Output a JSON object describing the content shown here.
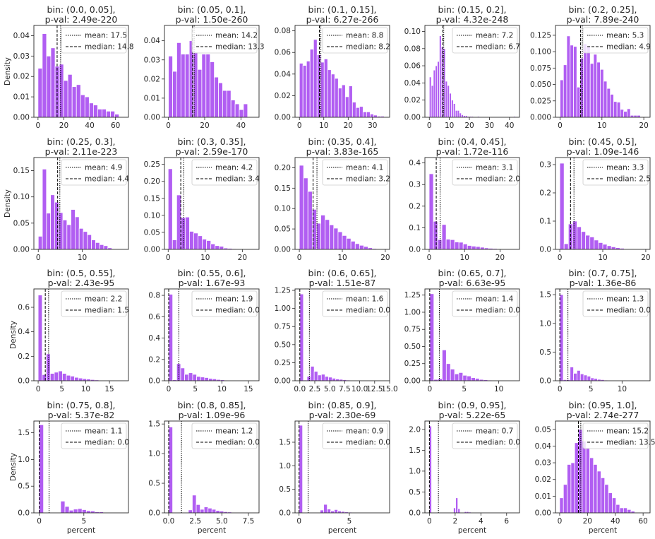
{
  "chart_data": {
    "type": "histogram_grid",
    "shared_ylabel": "Density",
    "shared_xlabel": "percent",
    "legend": {
      "mean_label": "mean",
      "median_label": "median",
      "placement": "upper-right"
    },
    "colors": {
      "bar": "#b15ef2",
      "bar_edge": "#ffffff",
      "mean_line": "#000000",
      "median_line": "#000000"
    },
    "panels": [
      {
        "title1": "bin:  (0.0, 0.05],",
        "title2": "p-val: 2.49e-220",
        "mean": 17.5,
        "median": 14.8,
        "xlim": [
          -3.2,
          70
        ],
        "ylim": [
          0,
          0.045
        ],
        "xticks": [
          0,
          20,
          40,
          60
        ],
        "yticks": [
          0.0,
          0.01,
          0.02,
          0.03,
          0.04
        ],
        "yfmt": 2,
        "values": [
          0.024,
          0.041,
          0.03,
          0.034,
          0.025,
          0.026,
          0.018,
          0.021,
          0.015,
          0.016,
          0.011,
          0.01,
          0.007,
          0.006,
          0.004,
          0.004,
          0.003,
          0.003,
          0.0015
        ],
        "bins": [
          0,
          3.3
        ]
      },
      {
        "title1": "bin:  (0.05, 0.1],",
        "title2": "p-val: 1.50e-260",
        "mean": 14.2,
        "median": 13.3,
        "xlim": [
          -2.2,
          50
        ],
        "ylim": [
          0,
          0.048
        ],
        "xticks": [
          0,
          20,
          40
        ],
        "yticks": [
          0.0,
          0.01,
          0.02,
          0.03,
          0.04
        ],
        "yfmt": 2,
        "values": [
          0.032,
          0.024,
          0.039,
          0.033,
          0.033,
          0.04,
          0.034,
          0.025,
          0.033,
          0.033,
          0.029,
          0.021,
          0.018,
          0.014,
          0.014,
          0.009,
          0.007,
          0.004,
          0.007
        ],
        "bins": [
          0,
          2.3
        ]
      },
      {
        "title1": "bin:  (0.1, 0.15],",
        "title2": "p-val: 6.27e-266",
        "mean": 8.8,
        "median": 8.2,
        "xlim": [
          -1.8,
          37
        ],
        "ylim": [
          0,
          0.085
        ],
        "xticks": [
          0,
          10,
          20,
          30
        ],
        "yticks": [
          0.0,
          0.02,
          0.04,
          0.06,
          0.08
        ],
        "yfmt": 2,
        "values": [
          0.05,
          0.048,
          0.052,
          0.063,
          0.072,
          0.058,
          0.051,
          0.054,
          0.044,
          0.04,
          0.036,
          0.027,
          0.03,
          0.019,
          0.029,
          0.014,
          0.009,
          0.01,
          0.005,
          0.005,
          0.003,
          0.002,
          0.001,
          0.001
        ],
        "bins": [
          0,
          1.45
        ]
      },
      {
        "title1": "bin:  (0.15, 0.2],",
        "title2": "p-val: 4.32e-248",
        "mean": 7.2,
        "median": 6.7,
        "xlim": [
          -2.2,
          45
        ],
        "ylim": [
          0,
          0.107
        ],
        "xticks": [
          0,
          10,
          20,
          30,
          40
        ],
        "yticks": [
          0.0,
          0.02,
          0.04,
          0.06,
          0.08,
          0.1
        ],
        "yfmt": 2,
        "values": [
          0.047,
          0.037,
          0.055,
          0.06,
          0.065,
          0.095,
          0.082,
          0.08,
          0.042,
          0.037,
          0.028,
          0.02,
          0.016,
          0.008,
          0.008,
          0.005,
          0.003,
          0.002,
          0.002,
          0.001,
          0.001,
          0.001,
          0.0,
          0.0,
          0.001,
          0.0,
          0.0,
          0.0,
          0.0,
          0.0,
          0.0,
          0.0,
          0.0,
          0.0,
          0.0,
          0.0,
          0.0,
          0.0,
          0.0,
          0.0,
          0.0,
          0.0,
          0.001
        ],
        "bins": [
          0,
          1.0
        ]
      },
      {
        "title1": "bin:  (0.2, 0.25],",
        "title2": "p-val: 7.89e-240",
        "mean": 5.3,
        "median": 4.9,
        "xlim": [
          -1.1,
          21.5
        ],
        "ylim": [
          0,
          0.14
        ],
        "xticks": [
          0,
          10,
          20
        ],
        "yticks": [
          0.0,
          0.025,
          0.05,
          0.075,
          0.1,
          0.125
        ],
        "yfmt": 3,
        "values": [
          0.057,
          0.08,
          0.124,
          0.11,
          0.108,
          0.046,
          0.09,
          0.112,
          0.108,
          0.082,
          0.096,
          0.084,
          0.073,
          0.055,
          0.044,
          0.035,
          0.024,
          0.023,
          0.012,
          0.009,
          0.013,
          0.003,
          0.003,
          0.003,
          0.001
        ],
        "bins": [
          0,
          0.8
        ]
      },
      {
        "title1": "bin:  (0.25, 0.3],",
        "title2": "p-val: 2.11e-223",
        "mean": 4.9,
        "median": 4.4,
        "xlim": [
          -1.0,
          20.5
        ],
        "ylim": [
          0,
          0.175
        ],
        "xticks": [
          0,
          10
        ],
        "yticks": [
          0.0,
          0.05,
          0.1,
          0.15
        ],
        "yfmt": 2,
        "values": [
          0.025,
          0.153,
          0.069,
          0.104,
          0.09,
          0.07,
          0.056,
          0.047,
          0.076,
          0.062,
          0.04,
          0.034,
          0.028,
          0.018,
          0.013,
          0.009,
          0.007,
          0.003,
          0.001
        ],
        "bins": [
          0,
          0.93
        ]
      },
      {
        "title1": "bin:  (0.3, 0.35],",
        "title2": "p-val: 2.59e-170",
        "mean": 4.2,
        "median": 3.4,
        "xlim": [
          -1.0,
          24.5
        ],
        "ylim": [
          0,
          0.27
        ],
        "xticks": [
          0,
          10,
          20
        ],
        "yticks": [
          0.0,
          0.05,
          0.1,
          0.15,
          0.2,
          0.25
        ],
        "yfmt": 2,
        "values": [
          0.237,
          0.028,
          0.16,
          0.093,
          0.095,
          0.053,
          0.048,
          0.04,
          0.03,
          0.026,
          0.016,
          0.011,
          0.009,
          0.004,
          0.003,
          0.002,
          0.001
        ],
        "bins": [
          0,
          1.15
        ]
      },
      {
        "title1": "bin:  (0.35, 0.4],",
        "title2": "p-val: 3.83e-165",
        "mean": 4.1,
        "median": 3.2,
        "xlim": [
          -1.0,
          21.0
        ],
        "ylim": [
          0,
          0.225
        ],
        "xticks": [
          0,
          10,
          20
        ],
        "yticks": [
          0.0,
          0.05,
          0.1,
          0.15,
          0.2
        ],
        "yfmt": 2,
        "values": [
          0.206,
          0.175,
          0.142,
          0.098,
          0.064,
          0.084,
          0.073,
          0.06,
          0.052,
          0.043,
          0.034,
          0.027,
          0.02,
          0.014,
          0.01,
          0.007,
          0.004,
          0.002,
          0.001
        ],
        "bins": [
          0,
          1.0
        ]
      },
      {
        "title1": "bin:  (0.4, 0.45],",
        "title2": "p-val: 1.72e-116",
        "mean": 3.1,
        "median": 2.0,
        "xlim": [
          -1.2,
          25.5
        ],
        "ylim": [
          0,
          0.425
        ],
        "xticks": [
          0,
          10,
          20
        ],
        "yticks": [
          0.0,
          0.1,
          0.2,
          0.3,
          0.4
        ],
        "yfmt": 1,
        "values": [
          0.35,
          0.13,
          0.045,
          0.115,
          0.047,
          0.045,
          0.034,
          0.033,
          0.025,
          0.018,
          0.015,
          0.013,
          0.01,
          0.007,
          0.005,
          0.004,
          0.002,
          0.001
        ],
        "bins": [
          0,
          1.2
        ]
      },
      {
        "title1": "bin:  (0.45, 0.5],",
        "title2": "p-val: 1.09e-146",
        "mean": 3.3,
        "median": 2.5,
        "xlim": [
          -1.0,
          21.0
        ],
        "ylim": [
          0,
          0.325
        ],
        "xticks": [
          0,
          10,
          20
        ],
        "yticks": [
          0.0,
          0.1,
          0.2,
          0.3
        ],
        "yfmt": 1,
        "values": [
          0.305,
          0.02,
          0.09,
          0.1,
          0.08,
          0.063,
          0.05,
          0.044,
          0.033,
          0.024,
          0.018,
          0.013,
          0.009,
          0.006,
          0.004,
          0.002,
          0.001
        ],
        "bins": [
          0,
          1.0
        ]
      },
      {
        "title1": "bin:  (0.5, 0.55],",
        "title2": "p-val: 2.43e-95",
        "mean": 2.2,
        "median": 1.5,
        "xlim": [
          -0.9,
          19.0
        ],
        "ylim": [
          0,
          0.75
        ],
        "xticks": [
          0,
          5,
          10,
          15
        ],
        "yticks": [
          0.0,
          0.2,
          0.4,
          0.6
        ],
        "yfmt": 1,
        "values": [
          0.7,
          0.05,
          0.22,
          0.06,
          0.07,
          0.08,
          0.06,
          0.045,
          0.038,
          0.028,
          0.022,
          0.017,
          0.014,
          0.01,
          0.007,
          0.004
        ],
        "bins": [
          0,
          0.85
        ]
      },
      {
        "title1": "bin:  (0.55, 0.6],",
        "title2": "p-val: 1.67e-93",
        "mean": 1.9,
        "median": 0.0,
        "xlim": [
          -0.8,
          17.0
        ],
        "ylim": [
          0,
          0.86
        ],
        "xticks": [
          0,
          5,
          10,
          15
        ],
        "yticks": [
          0.0,
          0.2,
          0.4,
          0.6,
          0.8
        ],
        "yfmt": 1,
        "values": [
          0.81,
          0.01,
          0.16,
          0.12,
          0.06,
          0.075,
          0.06,
          0.04,
          0.035,
          0.03,
          0.022,
          0.018,
          0.012,
          0.009,
          0.006,
          0.004,
          0.002
        ],
        "bins": [
          0,
          0.75
        ]
      },
      {
        "title1": "bin:  (0.6, 0.65],",
        "title2": "p-val: 1.51e-87",
        "mean": 1.6,
        "median": 0.0,
        "xlim": [
          -0.8,
          15.0
        ],
        "ylim": [
          0,
          1.27
        ],
        "xticks": [
          0,
          2.5,
          5.0,
          7.5,
          10.0,
          12.5,
          15.0
        ],
        "xfmt": 1,
        "yticks": [
          0.0,
          0.25,
          0.5,
          0.75,
          1.0,
          1.25
        ],
        "yfmt": 2,
        "values": [
          1.2,
          0.01,
          0.06,
          0.2,
          0.13,
          0.08,
          0.09,
          0.06,
          0.05,
          0.035,
          0.025,
          0.02,
          0.015,
          0.01,
          0.006,
          0.003
        ],
        "bins": [
          0,
          0.6
        ]
      },
      {
        "title1": "bin:  (0.65, 0.7],",
        "title2": "p-val: 6.63e-95",
        "mean": 1.4,
        "median": 0.0,
        "xlim": [
          -0.7,
          13.0
        ],
        "ylim": [
          0,
          1.34
        ],
        "xticks": [
          0,
          5,
          10
        ],
        "yticks": [
          0.0,
          0.25,
          0.5,
          0.75,
          1.0,
          1.25
        ],
        "yfmt": 2,
        "values": [
          1.27,
          0.02,
          0.03,
          0.45,
          0.25,
          0.17,
          0.1,
          0.12,
          0.08,
          0.07,
          0.045,
          0.035,
          0.02,
          0.015,
          0.01,
          0.005
        ],
        "bins": [
          0,
          0.6
        ]
      },
      {
        "title1": "bin:  (0.7, 0.75],",
        "title2": "p-val: 1.36e-86",
        "mean": 1.3,
        "median": 0.0,
        "xlim": [
          -0.7,
          14.5
        ],
        "ylim": [
          0,
          1.6
        ],
        "xticks": [
          0,
          5,
          10
        ],
        "yticks": [
          0.0,
          0.5,
          1.0,
          1.5
        ],
        "yfmt": 1,
        "values": [
          1.5,
          0.02,
          0.02,
          0.24,
          0.13,
          0.18,
          0.12,
          0.1,
          0.08,
          0.05,
          0.04,
          0.025,
          0.02,
          0.012,
          0.008
        ],
        "bins": [
          0,
          0.55
        ]
      },
      {
        "title1": "bin:  (0.75, 0.8],",
        "title2": "p-val: 5.37e-82",
        "mean": 1.1,
        "median": 0.0,
        "xlim": [
          -0.6,
          10.0
        ],
        "ylim": [
          0,
          1.72
        ],
        "xticks": [
          0,
          5
        ],
        "yticks": [
          0.0,
          0.5,
          1.0,
          1.5
        ],
        "yfmt": 1,
        "values": [
          1.65,
          0.0,
          0.0,
          0.0,
          0.0,
          0.22,
          0.12,
          0.05,
          0.07,
          0.08,
          0.06,
          0.04,
          0.035,
          0.02,
          0.02,
          0.01,
          0.01
        ],
        "bins": [
          0,
          0.48
        ]
      },
      {
        "title1": "bin:  (0.8, 0.85],",
        "title2": "p-val: 1.09e-96",
        "mean": 1.2,
        "median": 0.0,
        "xlim": [
          -0.4,
          8.5
        ],
        "ylim": [
          0,
          1.55
        ],
        "xticks": [
          0.0,
          2.5,
          5.0,
          7.5
        ],
        "xfmt": 1,
        "yticks": [
          0.0,
          0.5,
          1.0,
          1.5
        ],
        "yfmt": 1,
        "values": [
          1.45,
          0.0,
          0.0,
          0.0,
          0.0,
          0.05,
          0.3,
          0.14,
          0.06,
          0.1,
          0.08,
          0.06,
          0.04,
          0.03,
          0.02,
          0.015,
          0.01
        ],
        "bins": [
          0,
          0.37
        ]
      },
      {
        "title1": "bin:  (0.85, 0.9],",
        "title2": "p-val: 2.30e-69",
        "mean": 0.9,
        "median": 0.0,
        "xlim": [
          -0.4,
          9.0
        ],
        "ylim": [
          0,
          1.95
        ],
        "xticks": [
          0,
          5
        ],
        "yticks": [
          0.0,
          0.5,
          1.0,
          1.5
        ],
        "yfmt": 1,
        "values": [
          1.86,
          0.0,
          0.0,
          0.0,
          0.0,
          0.0,
          0.06,
          0.18,
          0.08,
          0.04,
          0.07,
          0.04,
          0.03,
          0.02,
          0.015,
          0.01
        ],
        "bins": [
          0,
          0.35
        ]
      },
      {
        "title1": "bin:  (0.9, 0.95],",
        "title2": "p-val: 5.22e-65",
        "mean": 0.7,
        "median": 0.0,
        "xlim": [
          -0.35,
          7.0
        ],
        "ylim": [
          0,
          2.2
        ],
        "xticks": [
          0,
          2,
          4,
          6
        ],
        "yticks": [
          0.0,
          0.5,
          1.0,
          1.5,
          2.0
        ],
        "yfmt": 1,
        "values": [
          2.08,
          0.0,
          0.0,
          0.0,
          0.0,
          0.0,
          0.0,
          0.0,
          0.0,
          0.0,
          0.0,
          0.12,
          0.36,
          0.1,
          0.0,
          0.0,
          0.03,
          0.03,
          0.02,
          0.01
        ],
        "bins": [
          0,
          0.17
        ]
      },
      {
        "title1": "bin:  (0.95, 1.0],",
        "title2": "p-val: 2.74e-277",
        "mean": 15.2,
        "median": 13.5,
        "xlim": [
          -3.0,
          65.0
        ],
        "ylim": [
          0,
          0.055
        ],
        "xticks": [
          0,
          20,
          40,
          60
        ],
        "yticks": [
          0.0,
          0.01,
          0.02,
          0.03,
          0.04,
          0.05
        ],
        "yfmt": 2,
        "values": [
          0.009,
          0.017,
          0.029,
          0.03,
          0.042,
          0.05,
          0.043,
          0.039,
          0.033,
          0.029,
          0.025,
          0.021,
          0.017,
          0.012,
          0.009,
          0.005,
          0.003,
          0.003,
          0.002,
          0.001
        ],
        "bins": [
          0,
          2.7
        ]
      }
    ]
  }
}
